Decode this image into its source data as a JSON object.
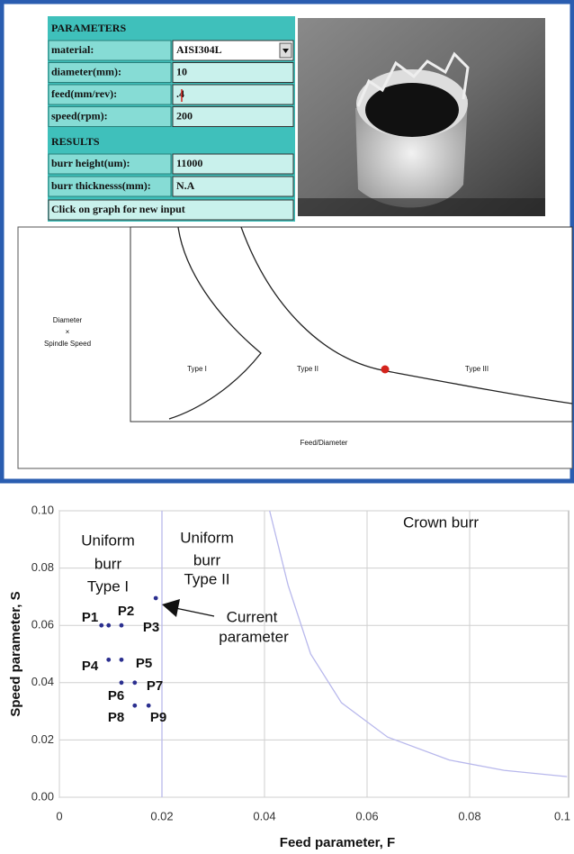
{
  "panel": {
    "parameters_title": "PARAMETERS",
    "fields": [
      {
        "label": "material:",
        "value": "AISI304L"
      },
      {
        "label": "diameter(mm):",
        "value": "10"
      },
      {
        "label": "feed(mm/rev):",
        "value": ".4"
      },
      {
        "label": "speed(rpm):",
        "value": "200"
      }
    ],
    "results_title": "RESULTS",
    "results": [
      {
        "label": "burr height(um):",
        "value": "11000"
      },
      {
        "label": "burr thicknesss(mm):",
        "value": "N.A"
      }
    ],
    "message": "Click on graph for new input"
  },
  "diagram": {
    "y_label": [
      "Diameter",
      "×",
      "Spindle Speed"
    ],
    "regions": [
      "Type I",
      "Type II",
      "Type III"
    ],
    "x_label": "Feed/Diameter"
  },
  "chart_data": {
    "type": "scatter",
    "series": [
      {
        "mode": "markers",
        "color": "#2b2f8f",
        "x": [
          0.0082,
          0.0096,
          0.0121,
          0.0188,
          0.0096,
          0.0121,
          0.0121,
          0.0147,
          0.0147,
          0.0174
        ],
        "values": [
          0.06,
          0.06,
          0.06,
          0.0695,
          0.048,
          0.048,
          0.04,
          0.04,
          0.032,
          0.032
        ]
      },
      {
        "mode": "line",
        "color": "#b8b8ec",
        "x": [
          0.041,
          0.0446,
          0.049,
          0.055,
          0.064,
          0.076,
          0.0867,
          0.099
        ],
        "values": [
          0.1,
          0.074,
          0.05,
          0.033,
          0.021,
          0.013,
          0.0094,
          0.0072
        ]
      },
      {
        "mode": "line",
        "color": "#b8b8ec",
        "x": [
          0.02,
          0.02
        ],
        "values": [
          0,
          0.1
        ]
      }
    ],
    "xlim": [
      0,
      0.1
    ],
    "ylim": [
      0,
      0.1
    ],
    "xticks": [
      0,
      0.02,
      0.04,
      0.06,
      0.08,
      0.1
    ],
    "yticks": [
      {
        "value": 0,
        "label": "0.00"
      },
      0.02,
      0.04,
      0.06,
      0.08,
      {
        "value": 0.1,
        "label": "0.10"
      }
    ],
    "xlabel": "Feed parameter, F",
    "ylabel": "Speed parameter, S",
    "grid": true,
    "annotations": [
      "Uniform",
      "burr",
      "Type I",
      "Uniform",
      "burr",
      "Type II",
      "Crown burr",
      "Current",
      "parameter",
      "P1",
      "P2",
      "P3",
      "P4",
      "P5",
      "P6",
      "P7",
      "P8",
      "P9"
    ]
  }
}
